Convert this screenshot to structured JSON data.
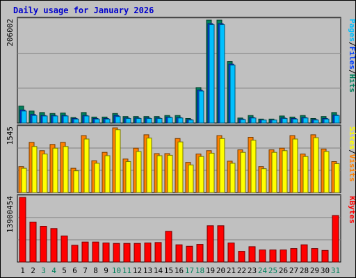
{
  "chart_data": [
    {
      "type": "bar",
      "title": "Daily usage for January 2026",
      "categories": [
        "1",
        "2",
        "3",
        "4",
        "5",
        "6",
        "7",
        "8",
        "9",
        "10",
        "11",
        "12",
        "13",
        "14",
        "15",
        "16",
        "17",
        "18",
        "19",
        "20",
        "21",
        "22",
        "23",
        "24",
        "25",
        "26",
        "27",
        "28",
        "29",
        "30",
        "31"
      ],
      "weekend_days": [
        "3",
        "4",
        "10",
        "11",
        "17",
        "18",
        "24",
        "25",
        "31"
      ],
      "ymax_label": "206002",
      "ylim": [
        0,
        206002
      ],
      "right_label": [
        "Pages",
        "/",
        "Files",
        "/",
        "Hits"
      ],
      "series": [
        {
          "name": "Hits",
          "values": [
            34000,
            24000,
            21000,
            19000,
            20000,
            11000,
            21000,
            12000,
            12000,
            19000,
            13000,
            13000,
            13000,
            13000,
            15000,
            15000,
            9000,
            71000,
            206002,
            206002,
            123000,
            10000,
            15000,
            8000,
            8000,
            14000,
            12000,
            15000,
            9000,
            13000,
            21000
          ]
        },
        {
          "name": "Files",
          "values": [
            26000,
            17000,
            15000,
            15000,
            15000,
            9000,
            15000,
            9000,
            9000,
            15000,
            10000,
            10000,
            10000,
            10000,
            12000,
            11000,
            7000,
            66000,
            199000,
            199000,
            118000,
            8000,
            11000,
            6000,
            6000,
            10000,
            9000,
            11000,
            7000,
            9000,
            16000
          ]
        },
        {
          "name": "Pages",
          "values": [
            24000,
            15000,
            14000,
            14000,
            14000,
            8000,
            14000,
            8000,
            8000,
            13000,
            9000,
            9000,
            9000,
            9000,
            11000,
            10000,
            6000,
            64000,
            197000,
            197000,
            116000,
            7000,
            10000,
            6000,
            6000,
            9000,
            8000,
            10000,
            6000,
            8000,
            15000
          ]
        }
      ],
      "colors": {
        "Hits": "#00805c",
        "Files": "#0040ff",
        "Pages": "#00c0ff"
      }
    },
    {
      "type": "bar",
      "categories": [
        "1",
        "2",
        "3",
        "4",
        "5",
        "6",
        "7",
        "8",
        "9",
        "10",
        "11",
        "12",
        "13",
        "14",
        "15",
        "16",
        "17",
        "18",
        "19",
        "20",
        "21",
        "22",
        "23",
        "24",
        "25",
        "26",
        "27",
        "28",
        "29",
        "30",
        "31"
      ],
      "ymax_label": "1545",
      "ylim": [
        0,
        1545
      ],
      "right_label": [
        "Sites",
        "/",
        "Visits"
      ],
      "series": [
        {
          "name": "Visits",
          "values": [
            620,
            1200,
            1000,
            1150,
            1200,
            580,
            1360,
            760,
            960,
            1545,
            800,
            1060,
            1380,
            930,
            930,
            1290,
            720,
            920,
            1000,
            1360,
            750,
            1020,
            1320,
            620,
            1020,
            1060,
            1360,
            920,
            1380,
            1040,
            740
          ]
        },
        {
          "name": "Sites",
          "values": [
            580,
            1100,
            920,
            1060,
            1100,
            520,
            1280,
            700,
            880,
            1500,
            740,
            980,
            1300,
            880,
            890,
            1210,
            660,
            860,
            940,
            1290,
            700,
            960,
            1250,
            570,
            960,
            1000,
            1280,
            860,
            1310,
            980,
            690
          ]
        }
      ],
      "colors": {
        "Visits": "#ff8000",
        "Sites": "#ffff00"
      }
    },
    {
      "type": "bar",
      "categories": [
        "1",
        "2",
        "3",
        "4",
        "5",
        "6",
        "7",
        "8",
        "9",
        "10",
        "11",
        "12",
        "13",
        "14",
        "15",
        "16",
        "17",
        "18",
        "19",
        "20",
        "21",
        "22",
        "23",
        "24",
        "25",
        "26",
        "27",
        "28",
        "29",
        "30",
        "31"
      ],
      "ymax_label": "13900454",
      "ylim": [
        0,
        13900454
      ],
      "right_label": [
        "KBytes"
      ],
      "series": [
        {
          "name": "KBytes",
          "values": [
            13900454,
            8600000,
            7700000,
            7200000,
            5600000,
            3600000,
            4300000,
            4300000,
            4100000,
            4000000,
            4000000,
            4000000,
            4100000,
            4200000,
            6600000,
            3700000,
            3400000,
            3800000,
            7800000,
            7800000,
            4100000,
            2300000,
            3300000,
            2600000,
            2600000,
            2600000,
            2900000,
            3700000,
            2900000,
            2500000,
            10000000
          ]
        }
      ],
      "colors": {
        "KBytes": "#ff0000"
      }
    }
  ]
}
